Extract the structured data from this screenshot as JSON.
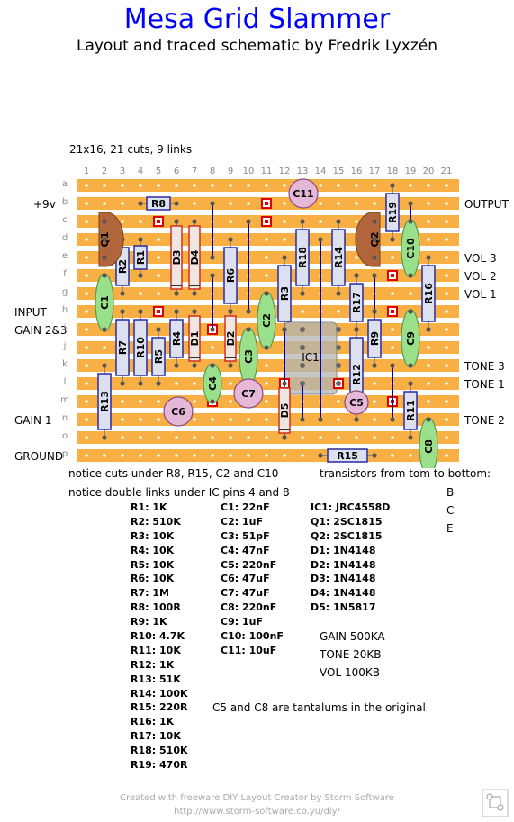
{
  "title": "Mesa Grid Slammer",
  "subtitle": "Layout and traced schematic by Fredrik Lyxzén",
  "board_info": "21x16, 21 cuts, 9 links",
  "columns": [
    "1",
    "2",
    "3",
    "4",
    "5",
    "6",
    "7",
    "8",
    "9",
    "10",
    "11",
    "12",
    "13",
    "14",
    "15",
    "16",
    "17",
    "18",
    "19",
    "20",
    "21"
  ],
  "rows": [
    "a",
    "b",
    "c",
    "d",
    "e",
    "f",
    "g",
    "h",
    "i",
    "j",
    "k",
    "l",
    "m",
    "n",
    "o",
    "p"
  ],
  "left_labels": [
    "+9v",
    "INPUT",
    "GAIN 2&3",
    "GAIN 1",
    "GROUND"
  ],
  "right_labels": [
    "OUTPUT",
    "VOL 3",
    "VOL 2",
    "VOL 1",
    "TONE 3",
    "TONE 1",
    "TONE 2"
  ],
  "components": {
    "resistors": [
      "R1",
      "R2",
      "R3",
      "R4",
      "R5",
      "R6",
      "R7",
      "R8",
      "R9",
      "R10",
      "R11",
      "R12",
      "R13",
      "R14",
      "R15",
      "R16",
      "R17",
      "R18",
      "R19"
    ],
    "caps": [
      "C1",
      "C2",
      "C3",
      "C4",
      "C5",
      "C6",
      "C7",
      "C8",
      "C9",
      "C10",
      "C11"
    ],
    "diodes": [
      "D1",
      "D2",
      "D3",
      "D4",
      "D5"
    ],
    "transistors": [
      "Q1",
      "Q2"
    ],
    "ic": "IC1"
  },
  "notes": {
    "cuts": "notice cuts under R8, R15, C2 and C10",
    "links": "notice double links under IC pins 4 and 8",
    "transistors": "transistors from tom to bottom:",
    "bce": [
      "B",
      "C",
      "E"
    ],
    "tantalum": "C5 and C8 are tantalums in the original"
  },
  "bom": {
    "resistors": [
      "R1: 1K",
      "R2: 510K",
      "R3: 10K",
      "R4: 10K",
      "R5: 10K",
      "R6: 10K",
      "R7: 1M",
      "R8: 100R",
      "R9: 1K",
      "R10: 4.7K",
      "R11: 10K",
      "R12: 1K",
      "R13: 51K",
      "R14: 100K",
      "R15: 220R",
      "R16: 1K",
      "R17: 10K",
      "R18: 510K",
      "R19: 470R"
    ],
    "capacitors": [
      "C1: 22nF",
      "C2: 1uF",
      "C3: 51pF",
      "C4: 47nF",
      "C5: 220nF",
      "C6: 47uF",
      "C7: 47uF",
      "C8: 220nF",
      "C9: 1uF",
      "C10: 100nF",
      "C11: 10uF"
    ],
    "semis": [
      "IC1: JRC4558D",
      "Q1: 2SC1815",
      "Q2: 2SC1815",
      "D1: 1N4148",
      "D2: 1N4148",
      "D3: 1N4148",
      "D4: 1N4148",
      "D5: 1N5817"
    ],
    "pots": [
      "GAIN 500KA",
      "TONE 20KB",
      "VOL 100KB"
    ]
  },
  "footer": {
    "line1": "Created with freeware DIY Layout Creator by Storm Software",
    "line2": "http://www.storm-software.co.yu/diy/"
  },
  "colors": {
    "title": "#0000ff",
    "strip": "#f8b045",
    "resistor_border": "#2a2aa0",
    "cap": "#9adf8a",
    "electrolytic": "#e6b8d8",
    "diode_border": "#d03020",
    "cut": "#e00000",
    "wire": "#0000c0"
  }
}
